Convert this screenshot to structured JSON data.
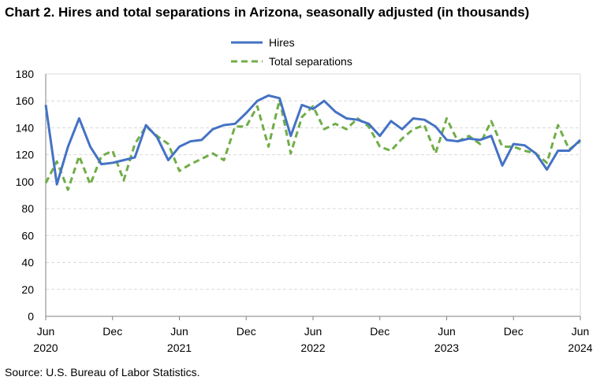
{
  "title": "Chart 2. Hires and total separations in Arizona, seasonally adjusted (in thousands)",
  "source": "Source: U.S. Bureau of Labor Statistics.",
  "colors": {
    "hires": "#4472C4",
    "separations": "#70AD47",
    "grid": "#D9D9D9",
    "axis": "#808080"
  },
  "chart_data": {
    "type": "line",
    "title": "Chart 2. Hires and total separations in Arizona, seasonally adjusted (in thousands)",
    "xlabel": "",
    "ylabel": "",
    "ylim": [
      0,
      180
    ],
    "yticks": [
      0,
      20,
      40,
      60,
      80,
      100,
      120,
      140,
      160,
      180
    ],
    "x": [
      "2020-06",
      "2020-07",
      "2020-08",
      "2020-09",
      "2020-10",
      "2020-11",
      "2020-12",
      "2021-01",
      "2021-02",
      "2021-03",
      "2021-04",
      "2021-05",
      "2021-06",
      "2021-07",
      "2021-08",
      "2021-09",
      "2021-10",
      "2021-11",
      "2021-12",
      "2022-01",
      "2022-02",
      "2022-03",
      "2022-04",
      "2022-05",
      "2022-06",
      "2022-07",
      "2022-08",
      "2022-09",
      "2022-10",
      "2022-11",
      "2022-12",
      "2023-01",
      "2023-02",
      "2023-03",
      "2023-04",
      "2023-05",
      "2023-06",
      "2023-07",
      "2023-08",
      "2023-09",
      "2023-10",
      "2023-11",
      "2023-12",
      "2024-01",
      "2024-02",
      "2024-03",
      "2024-04",
      "2024-05",
      "2024-06"
    ],
    "xticks": [
      {
        "month": "Jun",
        "year": "2020",
        "index": 0
      },
      {
        "month": "Dec",
        "year": "",
        "index": 6
      },
      {
        "month": "Jun",
        "year": "2021",
        "index": 12
      },
      {
        "month": "Dec",
        "year": "",
        "index": 18
      },
      {
        "month": "Jun",
        "year": "2022",
        "index": 24
      },
      {
        "month": "Dec",
        "year": "",
        "index": 30
      },
      {
        "month": "Jun",
        "year": "2023",
        "index": 36
      },
      {
        "month": "Dec",
        "year": "",
        "index": 42
      },
      {
        "month": "Jun",
        "year": "2024",
        "index": 48
      }
    ],
    "legend_position": "top-center",
    "grid": true,
    "series": [
      {
        "name": "Hires",
        "style": "solid",
        "values": [
          157,
          98,
          126,
          147,
          126,
          113,
          114,
          116,
          118,
          142,
          133,
          116,
          126,
          130,
          131,
          139,
          142,
          143,
          151,
          160,
          164,
          162,
          134,
          157,
          154,
          160,
          152,
          147,
          146,
          143,
          134,
          145,
          139,
          147,
          146,
          141,
          131,
          130,
          132,
          131,
          134,
          112,
          128,
          127,
          121,
          109,
          123,
          123,
          131
        ]
      },
      {
        "name": "Total separations",
        "style": "dashed",
        "values": [
          99,
          115,
          94,
          119,
          98,
          119,
          123,
          101,
          128,
          141,
          134,
          128,
          108,
          113,
          117,
          121,
          116,
          141,
          141,
          156,
          126,
          161,
          121,
          148,
          156,
          139,
          143,
          139,
          147,
          141,
          126,
          123,
          132,
          139,
          142,
          121,
          147,
          130,
          134,
          128,
          145,
          126,
          126,
          123,
          121,
          114,
          142,
          124,
          130
        ]
      }
    ]
  }
}
